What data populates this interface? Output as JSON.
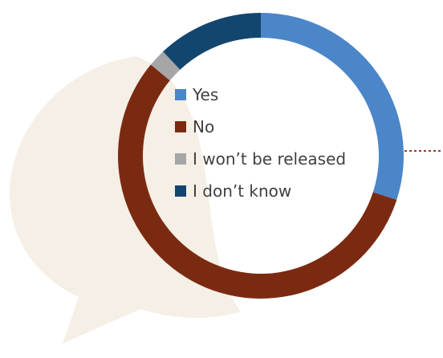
{
  "chart_data": {
    "type": "pie",
    "variant": "donut",
    "title": "",
    "categories": [
      "Yes",
      "No",
      "I won’t be released",
      "I don’t know"
    ],
    "values": [
      30,
      56,
      2,
      12
    ],
    "colors": [
      "#4a86c8",
      "#7b2a12",
      "#a6a6a6",
      "#13466e"
    ],
    "legend_position": "inside-center"
  },
  "decor": {
    "speech_bubble_color": "#f5efe6",
    "connector_color": "#9b3a26"
  }
}
